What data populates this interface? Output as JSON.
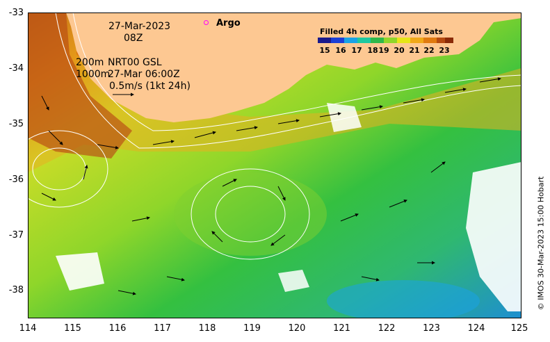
{
  "map": {
    "lon_range": [
      114,
      125
    ],
    "lat_range": [
      -38.5,
      -33
    ],
    "x_ticks": [
      114,
      115,
      116,
      117,
      118,
      119,
      120,
      121,
      122,
      123,
      124,
      125
    ],
    "y_ticks": [
      -33,
      -34,
      -35,
      -36,
      -37,
      -38
    ],
    "land_color": "#fdc892",
    "grid": false
  },
  "annotations": {
    "date": "27-Mar-2023",
    "time": "08Z",
    "contour_depths": "200m",
    "contour_depths_2": "1000m",
    "current_product": "NRT00 GSL",
    "current_time": "27-Mar 06:00Z",
    "scale_arrow": "0.5m/s (1kt 24h)"
  },
  "argo": {
    "label": "Argo",
    "marker_color": "#ff00ff"
  },
  "legend": {
    "title": "Filled 4h comp, p50, All Sats",
    "ticks": [
      "15",
      "16",
      "17",
      "18",
      "19",
      "20",
      "21",
      "22",
      "23"
    ],
    "colors": [
      "#1a1a8c",
      "#1c3fd6",
      "#1aa3e6",
      "#1ec8a0",
      "#2fb84a",
      "#8fd62a",
      "#e6e617",
      "#f0a818",
      "#e07a10",
      "#b54a10",
      "#8a2a08"
    ]
  },
  "credit": "© IMOS 30-Mar-2023 15:00 Hobart"
}
